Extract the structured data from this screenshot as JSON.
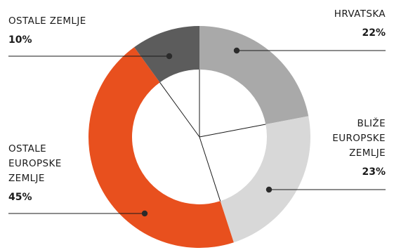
{
  "chart_data": {
    "type": "pie",
    "title": "",
    "slices": [
      {
        "label_lines": [
          "HRVATSKA"
        ],
        "value": 22,
        "value_label": "22%",
        "color": "#a9a9a9"
      },
      {
        "label_lines": [
          "BLIŽE",
          "EUROPSKE",
          "ZEMLJE"
        ],
        "value": 23,
        "value_label": "23%",
        "color": "#d8d8d8"
      },
      {
        "label_lines": [
          "OSTALE",
          "EUROPSKE",
          "ZEMLJE"
        ],
        "value": 45,
        "value_label": "45%",
        "color": "#e8501e"
      },
      {
        "label_lines": [
          "OSTALE ZEMLJE"
        ],
        "value": 10,
        "value_label": "10%",
        "color": "#5c5c5c"
      }
    ]
  }
}
